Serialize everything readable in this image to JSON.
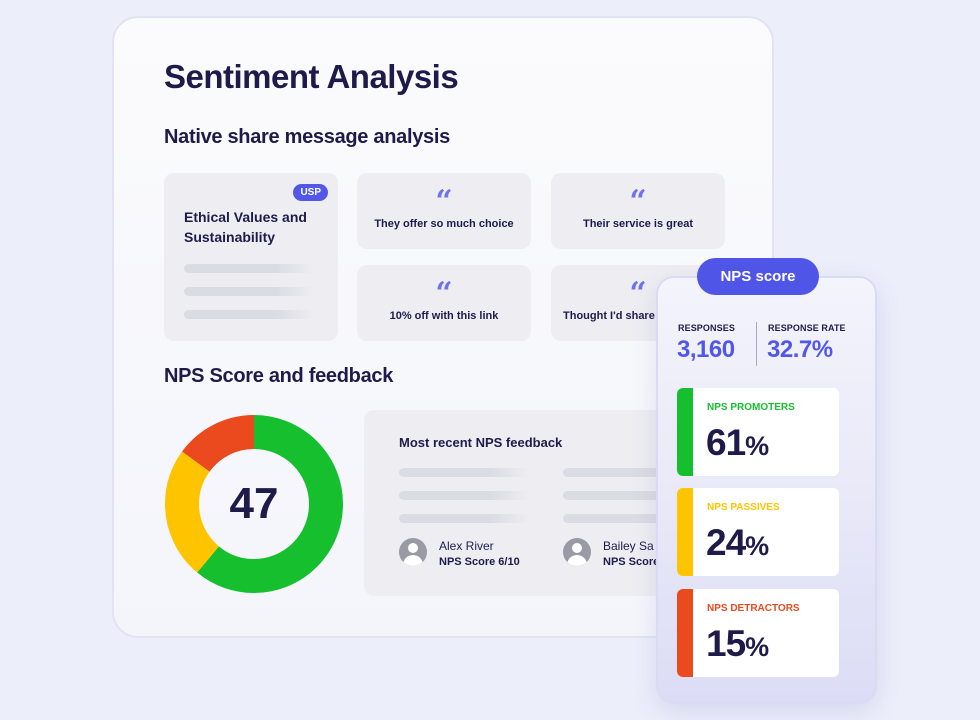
{
  "main": {
    "title": "Sentiment Analysis",
    "share_section_title": "Native share message analysis",
    "usp_card": {
      "badge": "USP",
      "title": "Ethical Values and Sustainability"
    },
    "quotes": [
      "They offer so much choice",
      "Their service is great",
      "10% off with this link",
      "Thought I'd share this with you"
    ],
    "nps_section_title": "NPS Score and feedback",
    "nps_value": "47",
    "donut": [
      {
        "name": "Promoters",
        "value": 61,
        "color": "#16bf2e"
      },
      {
        "name": "Passives",
        "value": 24,
        "color": "#ffc400"
      },
      {
        "name": "Detractors",
        "value": 15,
        "color": "#ea4a1e"
      }
    ],
    "feedback": {
      "title": "Most recent NPS feedback",
      "reviewers": [
        {
          "name": "Alex River",
          "score": "NPS Score 6/10"
        },
        {
          "name": "Bailey Sa",
          "score": "NPS Score"
        }
      ]
    }
  },
  "nps_panel": {
    "pill": "NPS score",
    "responses_label": "RESPONSES",
    "responses_value": "3,160",
    "rate_label": "RESPONSE RATE",
    "rate_value": "32.7%",
    "boxes": [
      {
        "label": "NPS PROMOTERS",
        "value": "61",
        "unit": "%",
        "color": "#16bf2e"
      },
      {
        "label": "NPS PASSIVES",
        "value": "24",
        "unit": "%",
        "color": "#ffc400"
      },
      {
        "label": "NPS DETRACTORS",
        "value": "15",
        "unit": "%",
        "color": "#ea4a1e"
      }
    ]
  }
}
